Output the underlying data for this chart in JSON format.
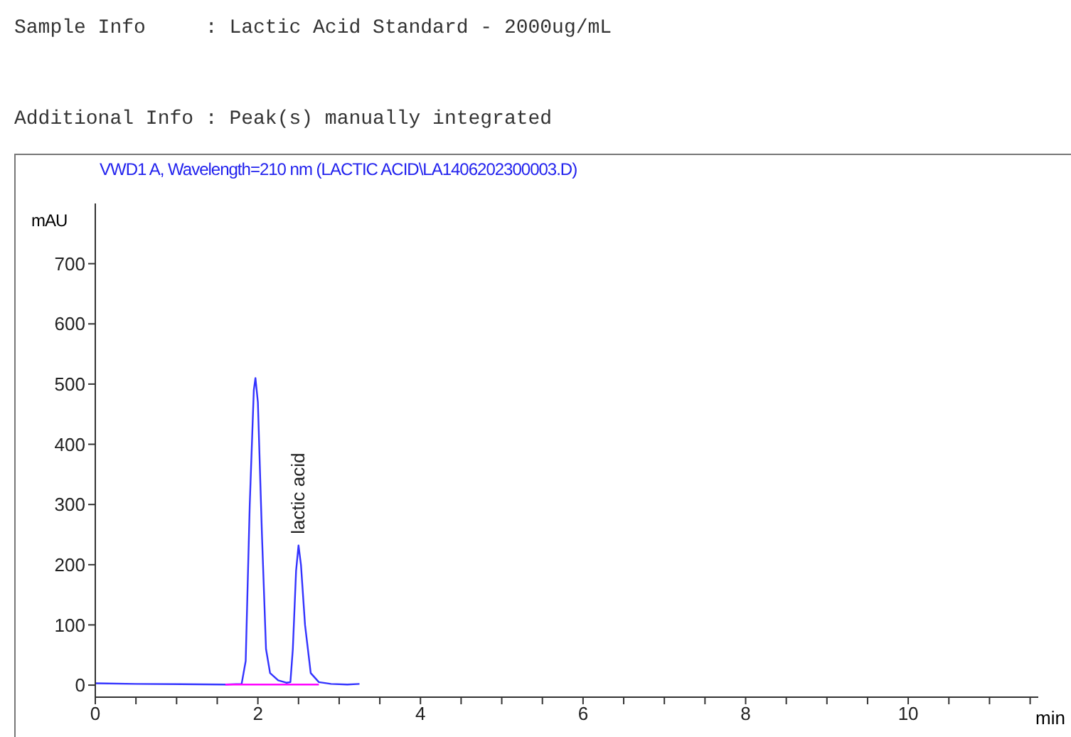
{
  "chart_data": {
    "type": "line",
    "title": "VWD1 A, Wavelength=210 nm (LACTIC ACID\\LA1406202300003.D)",
    "ylabel": "mAU",
    "xlabel": "min",
    "annotations": [
      "Sample Info     : Lactic Acid Standard - 2000ug/mL",
      "Additional Info : Peak(s) manually integrated",
      {
        "text": "lactic acid",
        "x": 2.5,
        "y": 232
      }
    ],
    "series": [
      {
        "color": "#3333ff",
        "x": [
          0,
          0.5,
          1.6,
          1.8,
          1.85,
          1.9,
          1.95,
          1.97,
          2.0,
          2.05,
          2.1,
          2.15,
          2.25,
          2.35,
          2.4,
          2.43,
          2.47,
          2.5,
          2.53,
          2.58,
          2.65,
          2.75,
          2.9,
          3.1,
          3.25
        ],
        "values": [
          3,
          2,
          1,
          2,
          40,
          300,
          490,
          510,
          470,
          250,
          60,
          20,
          8,
          4,
          5,
          60,
          190,
          232,
          200,
          100,
          20,
          5,
          2,
          1,
          2
        ]
      },
      {
        "color": "#ff00ff",
        "x": [
          1.6,
          2.75
        ],
        "values": [
          1,
          1
        ]
      }
    ],
    "xlim": [
      0,
      11.6
    ],
    "xticks": [
      0,
      {
        "value": 0.5,
        "label": null
      },
      2,
      {
        "value": 1,
        "label": null
      },
      {
        "value": 1.5,
        "label": null
      },
      {
        "value": 2.5,
        "label": null
      },
      {
        "value": 3,
        "label": null
      },
      {
        "value": 3.5,
        "label": null
      },
      4,
      {
        "value": 4.5,
        "label": null
      },
      {
        "value": 5,
        "label": null
      },
      {
        "value": 5.5,
        "label": null
      },
      6,
      {
        "value": 6.5,
        "label": null
      },
      {
        "value": 7,
        "label": null
      },
      {
        "value": 7.5,
        "label": null
      },
      8,
      {
        "value": 8.5,
        "label": null
      },
      {
        "value": 9,
        "label": null
      },
      {
        "value": 9.5,
        "label": null
      },
      10,
      {
        "value": 10.5,
        "label": null
      },
      {
        "value": 11,
        "label": null
      },
      {
        "value": 11.5,
        "label": null
      }
    ],
    "ylim": [
      -20,
      800
    ],
    "yticks": [
      0,
      100,
      200,
      300,
      400,
      500,
      600,
      700
    ]
  }
}
